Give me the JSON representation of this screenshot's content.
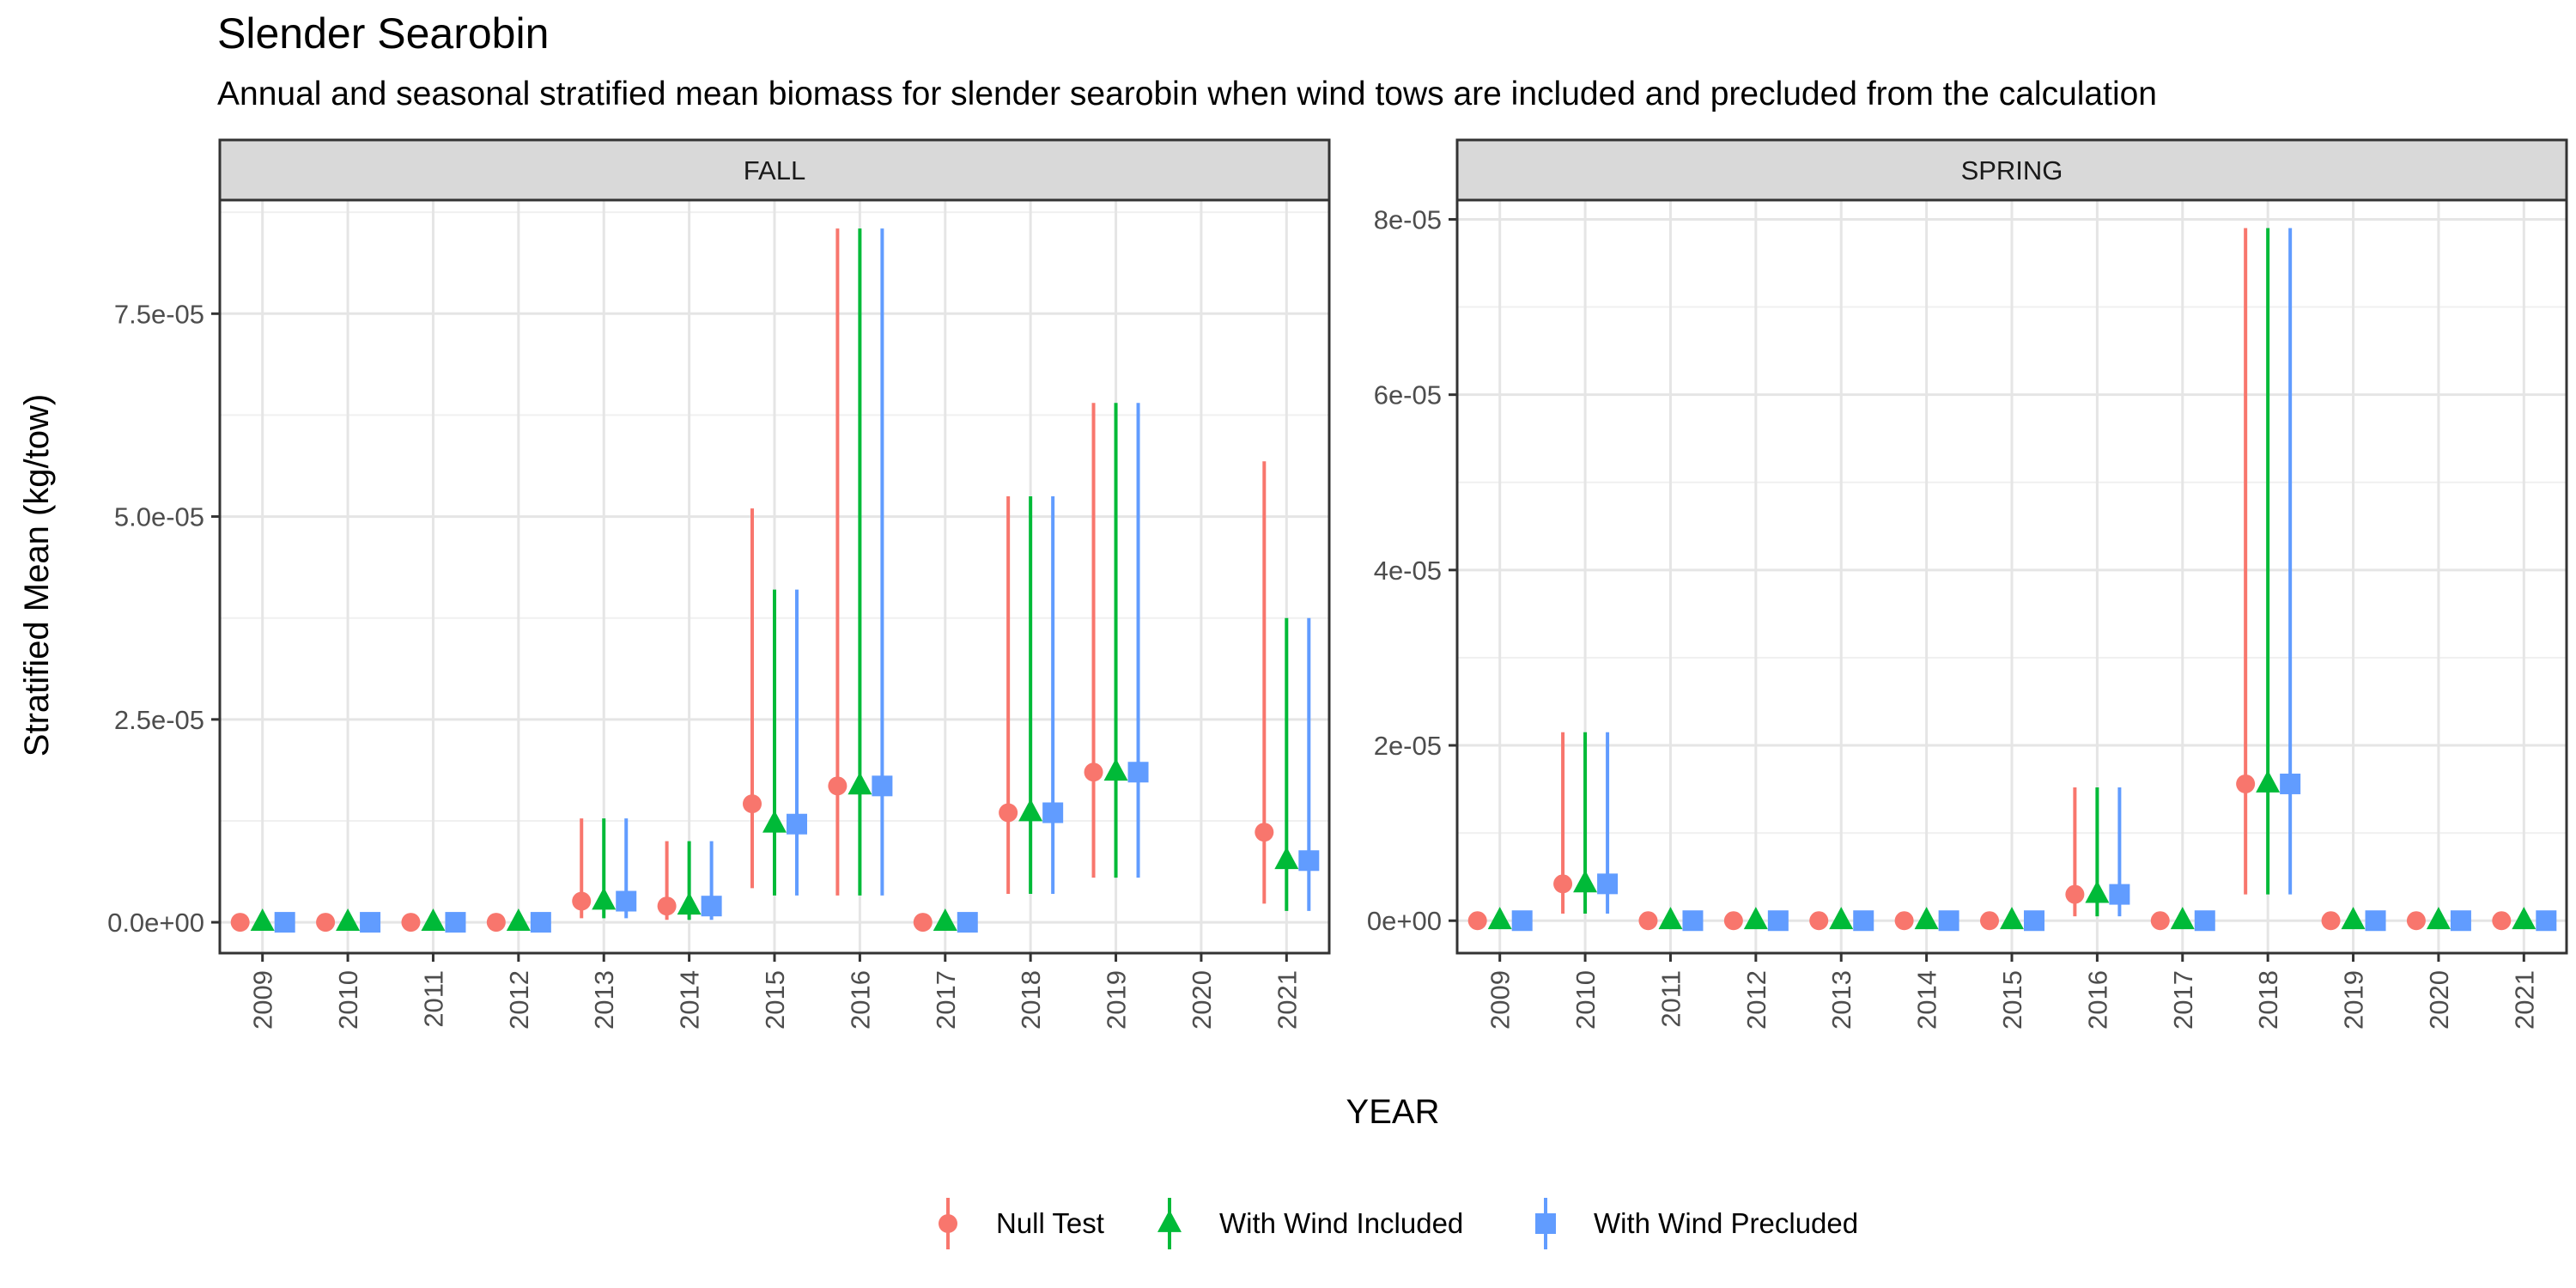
{
  "chart_data": {
    "type": "scatter",
    "title": "Slender Searobin",
    "subtitle": "Annual and seasonal stratified mean biomass for slender searobin when wind tows are included and precluded from the calculation",
    "xlabel": "YEAR",
    "ylabel": "Stratified Mean (kg/tow)",
    "legend": {
      "position": "bottom",
      "entries": [
        "Null Test",
        "With Wind Included",
        "With Wind Precluded"
      ]
    },
    "series_styles": [
      {
        "name": "Null Test",
        "color": "#F8766D",
        "shape": "circle"
      },
      {
        "name": "With Wind Included",
        "color": "#00BA38",
        "shape": "triangle"
      },
      {
        "name": "With Wind Precluded",
        "color": "#619CFF",
        "shape": "square"
      }
    ],
    "grid": true,
    "panels": [
      {
        "name": "FALL",
        "x": [
          "2009",
          "2010",
          "2011",
          "2012",
          "2013",
          "2014",
          "2015",
          "2016",
          "2017",
          "2018",
          "2019",
          "2020",
          "2021"
        ],
        "ylim": [
          -3.8e-06,
          8.9e-05
        ],
        "yticks": [
          0,
          2.5e-05,
          5e-05,
          7.5e-05
        ],
        "ytick_labels": [
          "0.0e+00",
          "2.5e-05",
          "5.0e-05",
          "7.5e-05"
        ],
        "series": [
          {
            "name": "Null Test",
            "values": [
              0,
              0,
              0,
              0,
              2.6e-06,
              2e-06,
              1.46e-05,
              1.68e-05,
              0,
              1.35e-05,
              1.85e-05,
              null,
              1.11e-05
            ],
            "lower": [
              0,
              0,
              0,
              0,
              5e-07,
              3e-07,
              4.2e-06,
              3.3e-06,
              0,
              3.5e-06,
              5.5e-06,
              null,
              2.3e-06
            ],
            "upper": [
              0,
              0,
              0,
              0,
              1.28e-05,
              1e-05,
              5.1e-05,
              8.55e-05,
              0,
              5.25e-05,
              6.4e-05,
              null,
              5.68e-05
            ]
          },
          {
            "name": "With Wind Included",
            "values": [
              0,
              0,
              0,
              0,
              2.6e-06,
              2e-06,
              1.21e-05,
              1.68e-05,
              0,
              1.35e-05,
              1.85e-05,
              null,
              7.6e-06
            ],
            "lower": [
              0,
              0,
              0,
              0,
              5e-07,
              3e-07,
              3.3e-06,
              3.3e-06,
              0,
              3.5e-06,
              5.5e-06,
              null,
              1.4e-06
            ],
            "upper": [
              0,
              0,
              0,
              0,
              1.28e-05,
              1e-05,
              4.1e-05,
              8.55e-05,
              0,
              5.25e-05,
              6.4e-05,
              null,
              3.75e-05
            ]
          },
          {
            "name": "With Wind Precluded",
            "values": [
              0,
              0,
              0,
              0,
              2.6e-06,
              2e-06,
              1.21e-05,
              1.68e-05,
              0,
              1.35e-05,
              1.85e-05,
              null,
              7.6e-06
            ],
            "lower": [
              0,
              0,
              0,
              0,
              5e-07,
              3e-07,
              3.3e-06,
              3.3e-06,
              0,
              3.5e-06,
              5.5e-06,
              null,
              1.4e-06
            ],
            "upper": [
              0,
              0,
              0,
              0,
              1.28e-05,
              1e-05,
              4.1e-05,
              8.55e-05,
              0,
              5.25e-05,
              6.4e-05,
              null,
              3.75e-05
            ]
          }
        ]
      },
      {
        "name": "SPRING",
        "x": [
          "2009",
          "2010",
          "2011",
          "2012",
          "2013",
          "2014",
          "2015",
          "2016",
          "2017",
          "2018",
          "2019",
          "2020",
          "2021"
        ],
        "ylim": [
          -3.7e-06,
          8.22e-05
        ],
        "yticks": [
          0,
          2e-05,
          4e-05,
          6e-05,
          8e-05
        ],
        "ytick_labels": [
          "0e+00",
          "2e-05",
          "4e-05",
          "6e-05",
          "8e-05"
        ],
        "series": [
          {
            "name": "Null Test",
            "values": [
              0,
              4.2e-06,
              0,
              0,
              0,
              0,
              0,
              3e-06,
              0,
              1.56e-05,
              0,
              0,
              0
            ],
            "lower": [
              0,
              8e-07,
              0,
              0,
              0,
              0,
              0,
              5e-07,
              0,
              3e-06,
              0,
              0,
              0
            ],
            "upper": [
              0,
              2.15e-05,
              0,
              0,
              0,
              0,
              0,
              1.52e-05,
              0,
              7.9e-05,
              0,
              0,
              0
            ]
          },
          {
            "name": "With Wind Included",
            "values": [
              0,
              4.2e-06,
              0,
              0,
              0,
              0,
              0,
              3e-06,
              0,
              1.56e-05,
              0,
              0,
              0
            ],
            "lower": [
              0,
              8e-07,
              0,
              0,
              0,
              0,
              0,
              5e-07,
              0,
              3e-06,
              0,
              0,
              0
            ],
            "upper": [
              0,
              2.15e-05,
              0,
              0,
              0,
              0,
              0,
              1.52e-05,
              0,
              7.9e-05,
              0,
              0,
              0
            ]
          },
          {
            "name": "With Wind Precluded",
            "values": [
              0,
              4.2e-06,
              0,
              0,
              0,
              0,
              0,
              3e-06,
              0,
              1.56e-05,
              0,
              0,
              0
            ],
            "lower": [
              0,
              8e-07,
              0,
              0,
              0,
              0,
              0,
              5e-07,
              0,
              3e-06,
              0,
              0,
              0
            ],
            "upper": [
              0,
              2.15e-05,
              0,
              0,
              0,
              0,
              0,
              1.52e-05,
              0,
              7.9e-05,
              0,
              0,
              0
            ]
          }
        ]
      }
    ]
  }
}
